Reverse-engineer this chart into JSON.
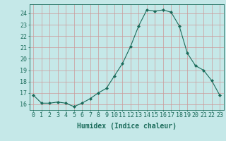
{
  "x": [
    0,
    1,
    2,
    3,
    4,
    5,
    6,
    7,
    8,
    9,
    10,
    11,
    12,
    13,
    14,
    15,
    16,
    17,
    18,
    19,
    20,
    21,
    22,
    23
  ],
  "y": [
    16.8,
    16.1,
    16.1,
    16.2,
    16.1,
    15.8,
    16.1,
    16.5,
    17.0,
    17.4,
    18.5,
    19.6,
    21.1,
    22.9,
    24.3,
    24.2,
    24.3,
    24.1,
    22.9,
    20.5,
    19.4,
    19.0,
    18.1,
    16.8
  ],
  "xlabel": "Humidex (Indice chaleur)",
  "bg_color": "#c5e8e8",
  "grid_color": "#cc9999",
  "line_color": "#1a6b5a",
  "marker_color": "#1a6b5a",
  "tick_color": "#1a6b5a",
  "label_color": "#1a6b5a",
  "ylim": [
    15.5,
    24.8
  ],
  "yticks": [
    16,
    17,
    18,
    19,
    20,
    21,
    22,
    23,
    24
  ],
  "xticks": [
    0,
    1,
    2,
    3,
    4,
    5,
    6,
    7,
    8,
    9,
    10,
    11,
    12,
    13,
    14,
    15,
    16,
    17,
    18,
    19,
    20,
    21,
    22,
    23
  ],
  "xtick_labels": [
    "0",
    "1",
    "2",
    "3",
    "4",
    "5",
    "6",
    "7",
    "8",
    "9",
    "10",
    "11",
    "12",
    "13",
    "14",
    "15",
    "16",
    "17",
    "18",
    "19",
    "20",
    "21",
    "22",
    "23"
  ],
  "font_size": 6,
  "xlabel_fontsize": 7
}
